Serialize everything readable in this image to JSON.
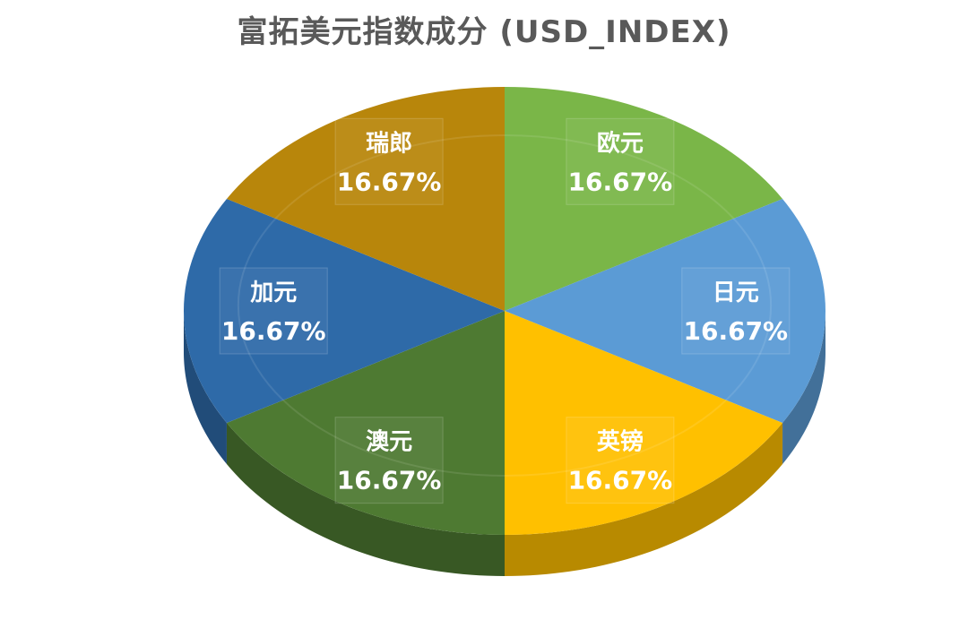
{
  "chart_data": {
    "type": "pie",
    "title": "富拓美元指数成分 (USD_INDEX)",
    "categories": [
      "欧元",
      "日元",
      "英镑",
      "澳元",
      "加元",
      "瑞郎"
    ],
    "values": [
      16.67,
      16.67,
      16.67,
      16.67,
      16.67,
      16.67
    ],
    "value_labels": [
      "16.67%",
      "16.67%",
      "16.67%",
      "16.67%",
      "16.67%",
      "16.67%"
    ],
    "colors": [
      "#7AB648",
      "#5B9BD5",
      "#FFC000",
      "#4E7A32",
      "#2E6AA8",
      "#B8860B"
    ],
    "legend": "none",
    "style": "3d-tilted"
  }
}
